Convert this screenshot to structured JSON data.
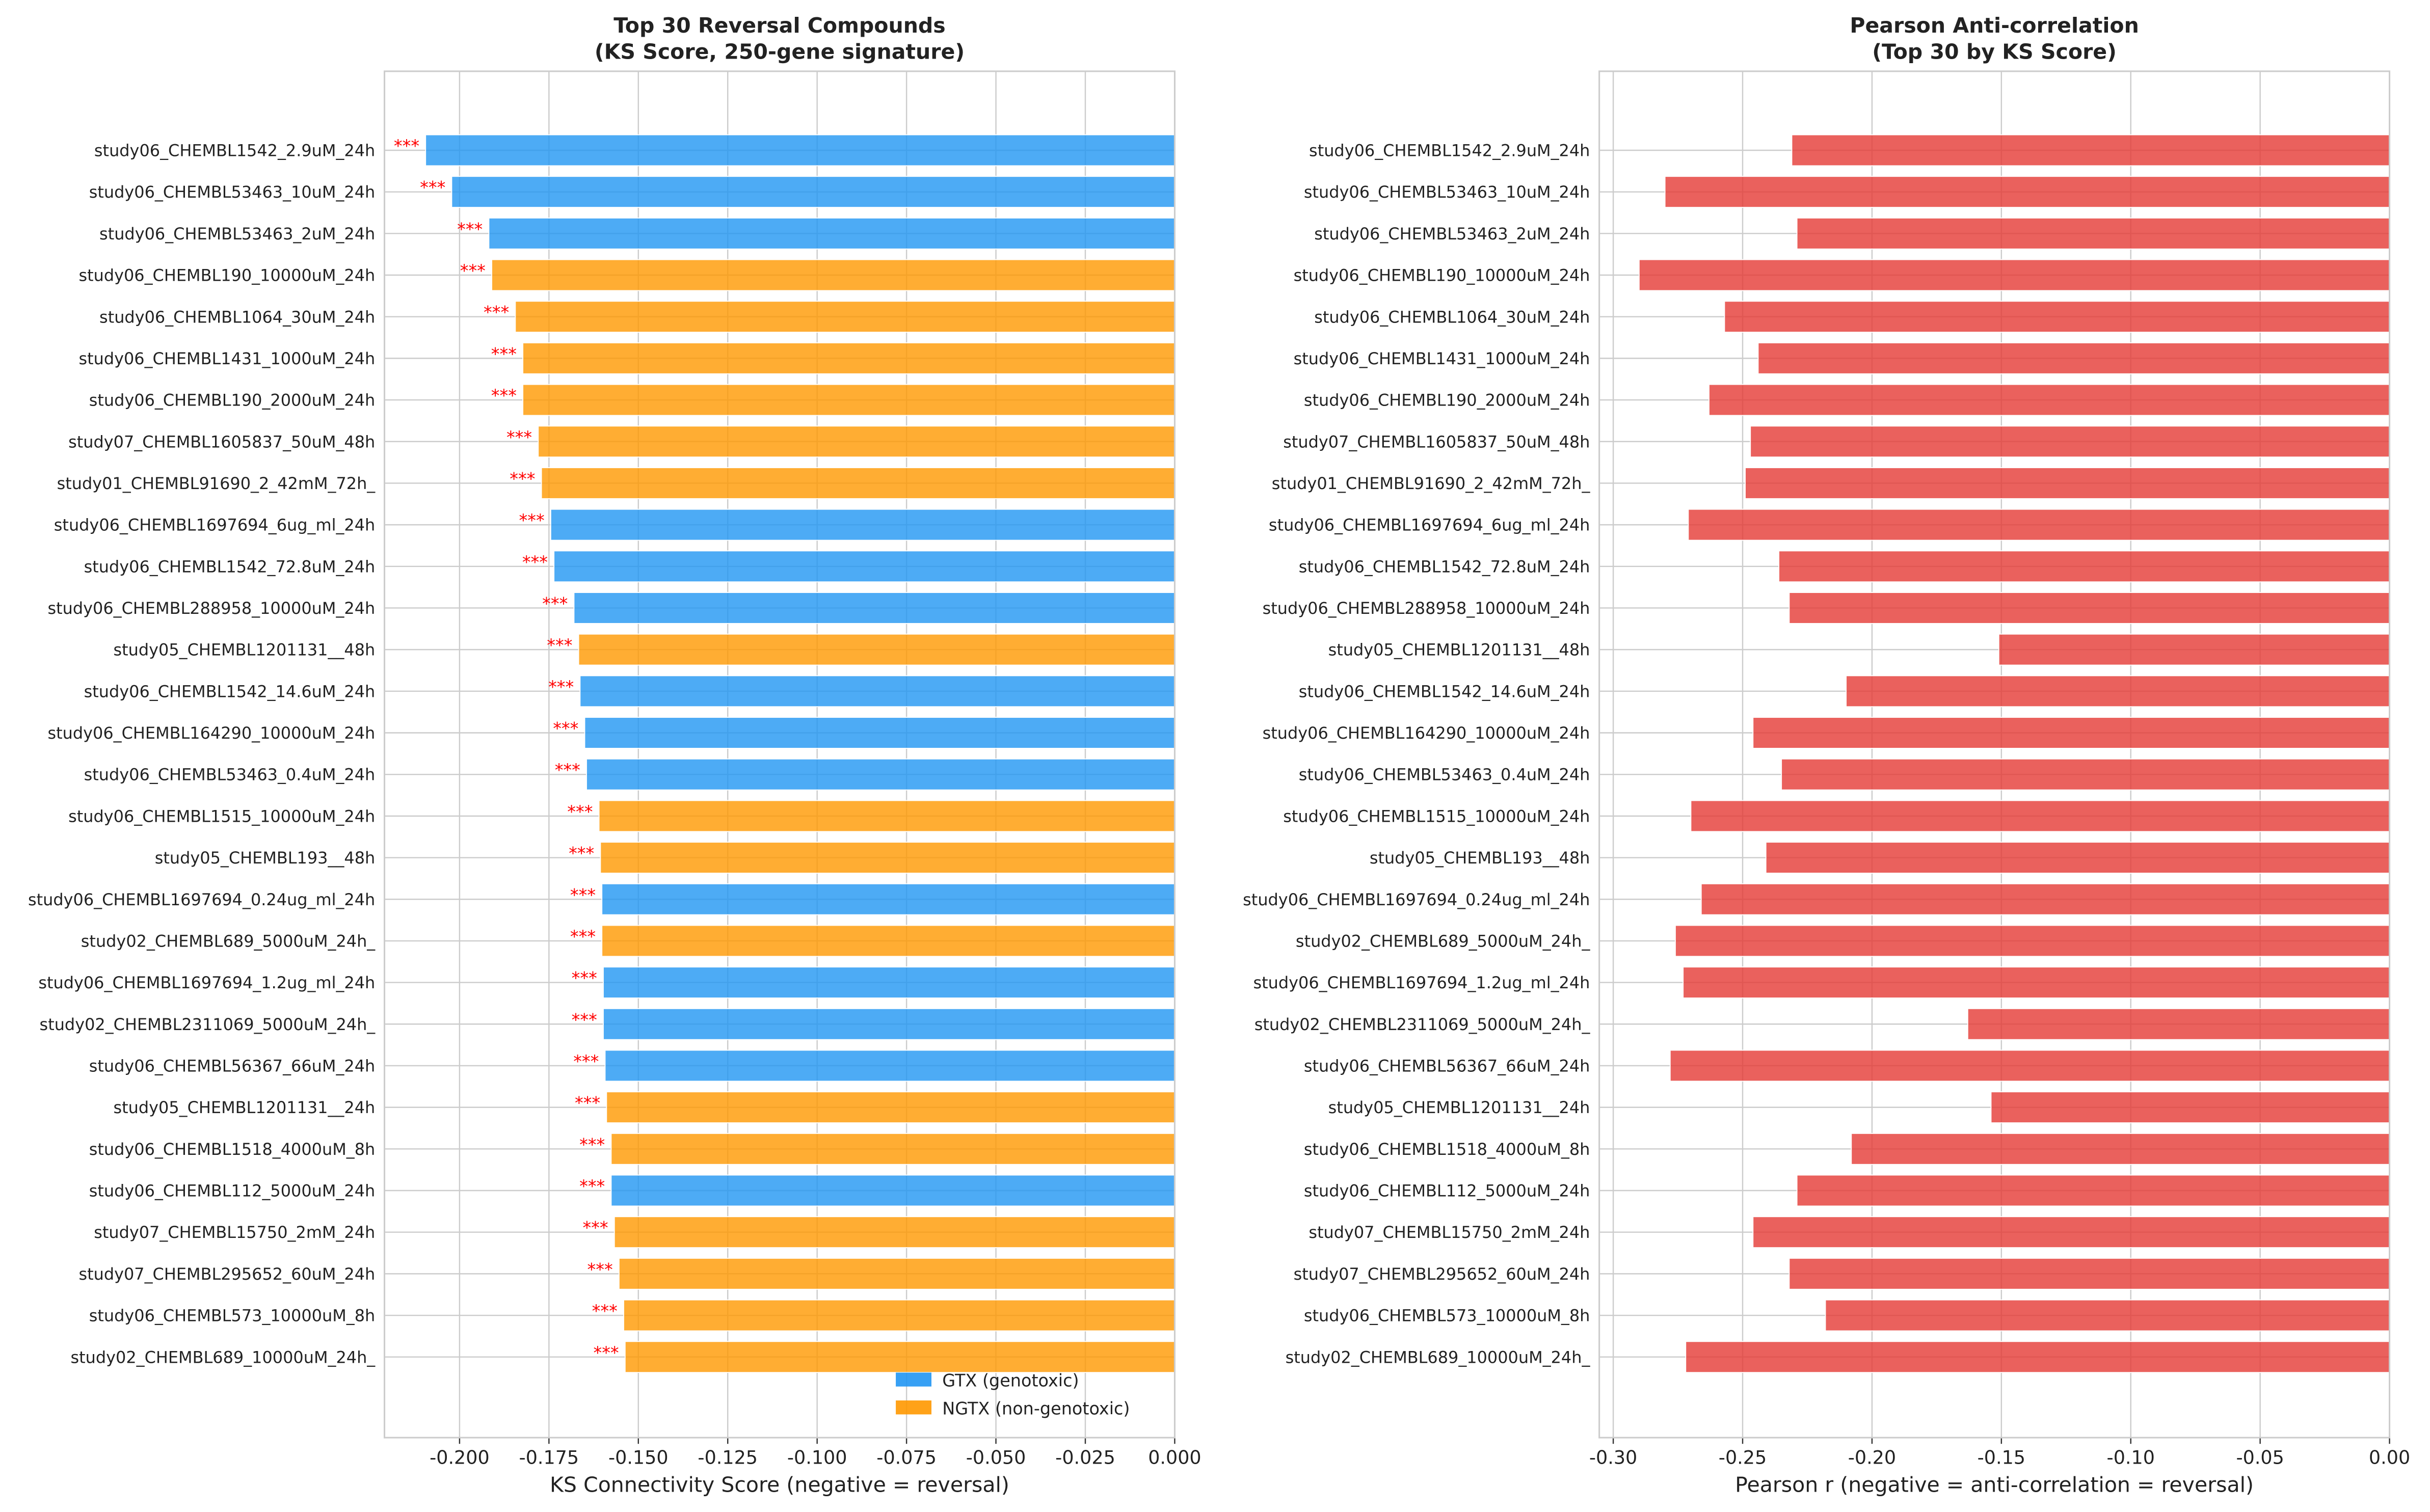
{
  "chart_data": [
    {
      "type": "bar",
      "orientation": "horizontal",
      "title": "Top 30 Reversal Compounds\n(KS Score, 250-gene signature)",
      "xlabel": "KS Connectivity Score (negative = reversal)",
      "ylabel": "",
      "xlim": [
        -0.221,
        0.0
      ],
      "xticks": [
        "-0.200",
        "-0.175",
        "-0.150",
        "-0.125",
        "-0.100",
        "-0.075",
        "-0.050",
        "-0.025",
        "0.000"
      ],
      "xtick_values": [
        -0.2,
        -0.175,
        -0.15,
        -0.125,
        -0.1,
        -0.075,
        -0.05,
        -0.025,
        0.0
      ],
      "grid": true,
      "legend_placement": "lower-right",
      "legend": [
        {
          "label": "GTX (genotoxic)",
          "color": "#2196F3"
        },
        {
          "label": "NGTX (non-genotoxic)",
          "color": "#FF9800"
        }
      ],
      "annotation": "***",
      "annotation_color": "#ff0000",
      "categories": [
        "study06_CHEMBL1542_2.9uM_24h",
        "study06_CHEMBL53463_10uM_24h",
        "study06_CHEMBL53463_2uM_24h",
        "study06_CHEMBL190_10000uM_24h",
        "study06_CHEMBL1064_30uM_24h",
        "study06_CHEMBL1431_1000uM_24h",
        "study06_CHEMBL190_2000uM_24h",
        "study07_CHEMBL1605837_50uM_48h",
        "study01_CHEMBL91690_2_42mM_72h_",
        "study06_CHEMBL1697694_6ug_ml_24h",
        "study06_CHEMBL1542_72.8uM_24h",
        "study06_CHEMBL288958_10000uM_24h",
        "study05_CHEMBL1201131__48h",
        "study06_CHEMBL1542_14.6uM_24h",
        "study06_CHEMBL164290_10000uM_24h",
        "study06_CHEMBL53463_0.4uM_24h",
        "study06_CHEMBL1515_10000uM_24h",
        "study05_CHEMBL193__48h",
        "study06_CHEMBL1697694_0.24ug_ml_24h",
        "study02_CHEMBL689_5000uM_24h_",
        "study06_CHEMBL1697694_1.2ug_ml_24h",
        "study02_CHEMBL2311069_5000uM_24h_",
        "study06_CHEMBL56367_66uM_24h",
        "study05_CHEMBL1201131__24h",
        "study06_CHEMBL1518_4000uM_8h",
        "study06_CHEMBL112_5000uM_24h",
        "study07_CHEMBL15750_2mM_24h",
        "study07_CHEMBL295652_60uM_24h",
        "study06_CHEMBL573_10000uM_8h",
        "study02_CHEMBL689_10000uM_24h_"
      ],
      "values": [
        -0.2095,
        -0.2022,
        -0.1918,
        -0.191,
        -0.1844,
        -0.1823,
        -0.1823,
        -0.178,
        -0.1771,
        -0.1745,
        -0.1736,
        -0.168,
        -0.1667,
        -0.1663,
        -0.165,
        -0.1645,
        -0.161,
        -0.1606,
        -0.1602,
        -0.1602,
        -0.1598,
        -0.1598,
        -0.1593,
        -0.1589,
        -0.1576,
        -0.1576,
        -0.1567,
        -0.1554,
        -0.1541,
        -0.1537
      ],
      "class": [
        "GTX",
        "GTX",
        "GTX",
        "NGTX",
        "NGTX",
        "NGTX",
        "NGTX",
        "NGTX",
        "NGTX",
        "GTX",
        "GTX",
        "GTX",
        "NGTX",
        "GTX",
        "GTX",
        "GTX",
        "NGTX",
        "NGTX",
        "GTX",
        "NGTX",
        "GTX",
        "GTX",
        "GTX",
        "NGTX",
        "NGTX",
        "GTX",
        "NGTX",
        "NGTX",
        "NGTX",
        "NGTX"
      ]
    },
    {
      "type": "bar",
      "orientation": "horizontal",
      "title": "Pearson Anti-correlation\n(Top 30 by KS Score)",
      "xlabel": "Pearson r (negative = anti-correlation = reversal)",
      "ylabel": "",
      "xlim": [
        -0.3054,
        0.0
      ],
      "xticks": [
        "-0.30",
        "-0.25",
        "-0.20",
        "-0.15",
        "-0.10",
        "-0.05",
        "0.00"
      ],
      "xtick_values": [
        -0.3,
        -0.25,
        -0.2,
        -0.15,
        -0.1,
        -0.05,
        0.0
      ],
      "grid": true,
      "color": "#E53935",
      "categories": [
        "study06_CHEMBL1542_2.9uM_24h",
        "study06_CHEMBL53463_10uM_24h",
        "study06_CHEMBL53463_2uM_24h",
        "study06_CHEMBL190_10000uM_24h",
        "study06_CHEMBL1064_30uM_24h",
        "study06_CHEMBL1431_1000uM_24h",
        "study06_CHEMBL190_2000uM_24h",
        "study07_CHEMBL1605837_50uM_48h",
        "study01_CHEMBL91690_2_42mM_72h_",
        "study06_CHEMBL1697694_6ug_ml_24h",
        "study06_CHEMBL1542_72.8uM_24h",
        "study06_CHEMBL288958_10000uM_24h",
        "study05_CHEMBL1201131__48h",
        "study06_CHEMBL1542_14.6uM_24h",
        "study06_CHEMBL164290_10000uM_24h",
        "study06_CHEMBL53463_0.4uM_24h",
        "study06_CHEMBL1515_10000uM_24h",
        "study05_CHEMBL193__48h",
        "study06_CHEMBL1697694_0.24ug_ml_24h",
        "study02_CHEMBL689_5000uM_24h_",
        "study06_CHEMBL1697694_1.2ug_ml_24h",
        "study02_CHEMBL2311069_5000uM_24h_",
        "study06_CHEMBL56367_66uM_24h",
        "study05_CHEMBL1201131__24h",
        "study06_CHEMBL1518_4000uM_8h",
        "study06_CHEMBL112_5000uM_24h",
        "study07_CHEMBL15750_2mM_24h",
        "study07_CHEMBL295652_60uM_24h",
        "study06_CHEMBL573_10000uM_8h",
        "study02_CHEMBL689_10000uM_24h_"
      ],
      "values": [
        -0.231,
        -0.28,
        -0.229,
        -0.29,
        -0.257,
        -0.244,
        -0.263,
        -0.247,
        -0.249,
        -0.271,
        -0.236,
        -0.232,
        -0.151,
        -0.21,
        -0.246,
        -0.235,
        -0.27,
        -0.241,
        -0.266,
        -0.276,
        -0.273,
        -0.163,
        -0.278,
        -0.154,
        -0.208,
        -0.229,
        -0.246,
        -0.232,
        -0.218,
        -0.272
      ]
    }
  ]
}
